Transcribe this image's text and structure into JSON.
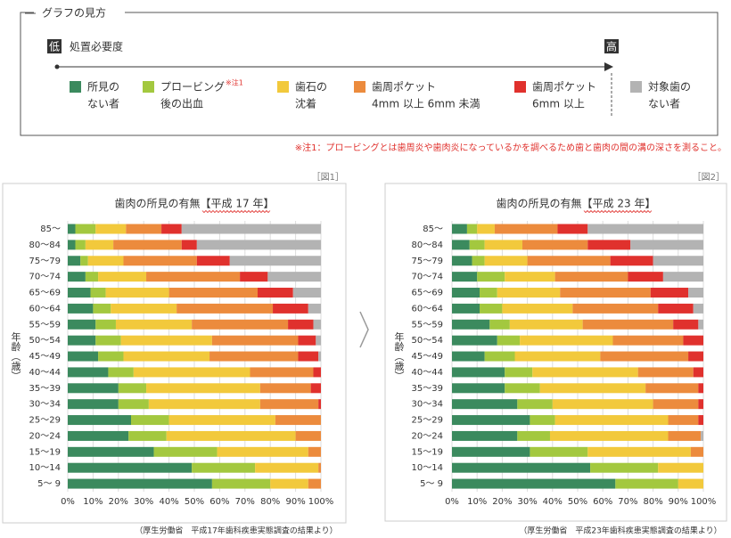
{
  "guide": {
    "title": "グラフの見方",
    "low": "低",
    "axis_label": "処置必要度",
    "high": "高",
    "legend": [
      {
        "lines": [
          "所見の",
          "ない者"
        ],
        "color": "#3b8a5e"
      },
      {
        "lines": [
          "プロービング",
          "後の出血"
        ],
        "note": "※注1",
        "color": "#a3c83f"
      },
      {
        "lines": [
          "歯石の",
          "沈着"
        ],
        "color": "#f2c93c"
      },
      {
        "lines": [
          "歯周ポケット",
          "4mm 以上 6mm 未満"
        ],
        "color": "#ec8b3d"
      },
      {
        "lines": [
          "歯周ポケット",
          "6mm 以上"
        ],
        "color": "#e0312d"
      },
      {
        "lines": [
          "対象歯の",
          "ない者"
        ],
        "color": "#b3b3b3"
      }
    ],
    "footnote": "※注1：プロービングとは歯周炎や歯肉炎になっているかを調べるため歯と歯肉の間の溝の深さを測ること。"
  },
  "chart_data": [
    {
      "type": "bar",
      "orientation": "horizontal",
      "stacked": true,
      "figure_label": "［図1］",
      "title": "歯肉の所見の有無【平成 17 年】",
      "ylabel": "年齢（歳）",
      "source": "（厚生労働省　平成17年歯科疾患実態調査の結果より）",
      "categories": [
        "85～",
        "80～84",
        "75～79",
        "70～74",
        "65～69",
        "60～64",
        "55～59",
        "50～54",
        "45～49",
        "40～44",
        "35～39",
        "30～34",
        "25～29",
        "20～24",
        "15～19",
        "10～14",
        "5～ 9"
      ],
      "series": [
        {
          "color": "#3b8a5e",
          "values": [
            3,
            3,
            5,
            7,
            9,
            10,
            11,
            11,
            12,
            16,
            20,
            20,
            25,
            24,
            34,
            49,
            57
          ]
        },
        {
          "color": "#a3c83f",
          "values": [
            8,
            4,
            3,
            5,
            6,
            7,
            8,
            10,
            10,
            10,
            11,
            12,
            15,
            15,
            25,
            25,
            23
          ]
        },
        {
          "color": "#f2c93c",
          "values": [
            12,
            11,
            14,
            19,
            25,
            26,
            30,
            36,
            34,
            46,
            45,
            44,
            42,
            51,
            36,
            25,
            15
          ]
        },
        {
          "color": "#ec8b3d",
          "values": [
            14,
            27,
            29,
            37,
            35,
            38,
            38,
            34,
            35,
            25,
            20,
            23,
            18,
            10,
            5,
            1,
            5
          ]
        },
        {
          "color": "#e0312d",
          "values": [
            8,
            6,
            13,
            11,
            14,
            14,
            10,
            7,
            8,
            3,
            4,
            1,
            0,
            0,
            0,
            0,
            0
          ]
        },
        {
          "color": "#b3b3b3",
          "values": [
            55,
            49,
            36,
            21,
            11,
            5,
            3,
            2,
            1,
            0,
            0,
            0,
            0,
            0,
            0,
            0,
            0
          ]
        }
      ],
      "xlim": [
        0,
        100
      ],
      "xticks": [
        {
          "value": 0,
          "label": "0%"
        },
        {
          "value": 10,
          "label": "10%"
        },
        {
          "value": 20,
          "label": "20%"
        },
        {
          "value": 30,
          "label": "30%"
        },
        {
          "value": 40,
          "label": "40%"
        },
        {
          "value": 50,
          "label": "50%"
        },
        {
          "value": 60,
          "label": "60%"
        },
        {
          "value": 70,
          "label": "70%"
        },
        {
          "value": 80,
          "label": "80%"
        },
        {
          "value": 90,
          "label": "90%"
        },
        {
          "value": 100,
          "label": "100%"
        }
      ],
      "grid": true
    },
    {
      "type": "bar",
      "orientation": "horizontal",
      "stacked": true,
      "figure_label": "［図2］",
      "title": "歯肉の所見の有無【平成 23 年】",
      "ylabel": "年齢（歳）",
      "source": "（厚生労働省　平成23年歯科疾患実態調査の結果より）",
      "categories": [
        "85～",
        "80～84",
        "75～79",
        "70～74",
        "65～69",
        "60～64",
        "55～59",
        "50～54",
        "45～49",
        "40～44",
        "35～39",
        "30～34",
        "25～29",
        "20～24",
        "15～19",
        "10～14",
        "5～ 9"
      ],
      "series": [
        {
          "color": "#3b8a5e",
          "values": [
            6,
            7,
            8,
            10,
            11,
            11,
            15,
            18,
            13,
            21,
            21,
            26,
            31,
            26,
            31,
            55,
            65
          ]
        },
        {
          "color": "#a3c83f",
          "values": [
            4,
            6,
            5,
            11,
            7,
            9,
            8,
            9,
            12,
            11,
            14,
            14,
            10,
            13,
            23,
            27,
            25
          ]
        },
        {
          "color": "#f2c93c",
          "values": [
            7,
            15,
            17,
            20,
            25,
            28,
            29,
            37,
            34,
            42,
            42,
            40,
            45,
            47,
            41,
            18,
            10
          ]
        },
        {
          "color": "#ec8b3d",
          "values": [
            25,
            26,
            33,
            29,
            36,
            34,
            36,
            28,
            35,
            22,
            21,
            18,
            12,
            13,
            5,
            0,
            0
          ]
        },
        {
          "color": "#e0312d",
          "values": [
            12,
            17,
            17,
            14,
            15,
            14,
            10,
            8,
            6,
            4,
            2,
            2,
            2,
            0,
            0,
            0,
            0
          ]
        },
        {
          "color": "#b3b3b3",
          "values": [
            46,
            29,
            20,
            16,
            6,
            4,
            2,
            0,
            0,
            0,
            0,
            0,
            0,
            1,
            0,
            0,
            0
          ]
        }
      ],
      "xlim": [
        0,
        100
      ],
      "xticks": [
        {
          "value": 0,
          "label": "0%"
        },
        {
          "value": 10,
          "label": "10%"
        },
        {
          "value": 20,
          "label": "20%"
        },
        {
          "value": 30,
          "label": "30%"
        },
        {
          "value": 40,
          "label": "40%"
        },
        {
          "value": 50,
          "label": "50%"
        },
        {
          "value": 60,
          "label": "60%"
        },
        {
          "value": 70,
          "label": "70%"
        },
        {
          "value": 80,
          "label": "80%"
        },
        {
          "value": 90,
          "label": "90%"
        },
        {
          "value": 100,
          "label": "100%"
        }
      ],
      "grid": true
    }
  ]
}
